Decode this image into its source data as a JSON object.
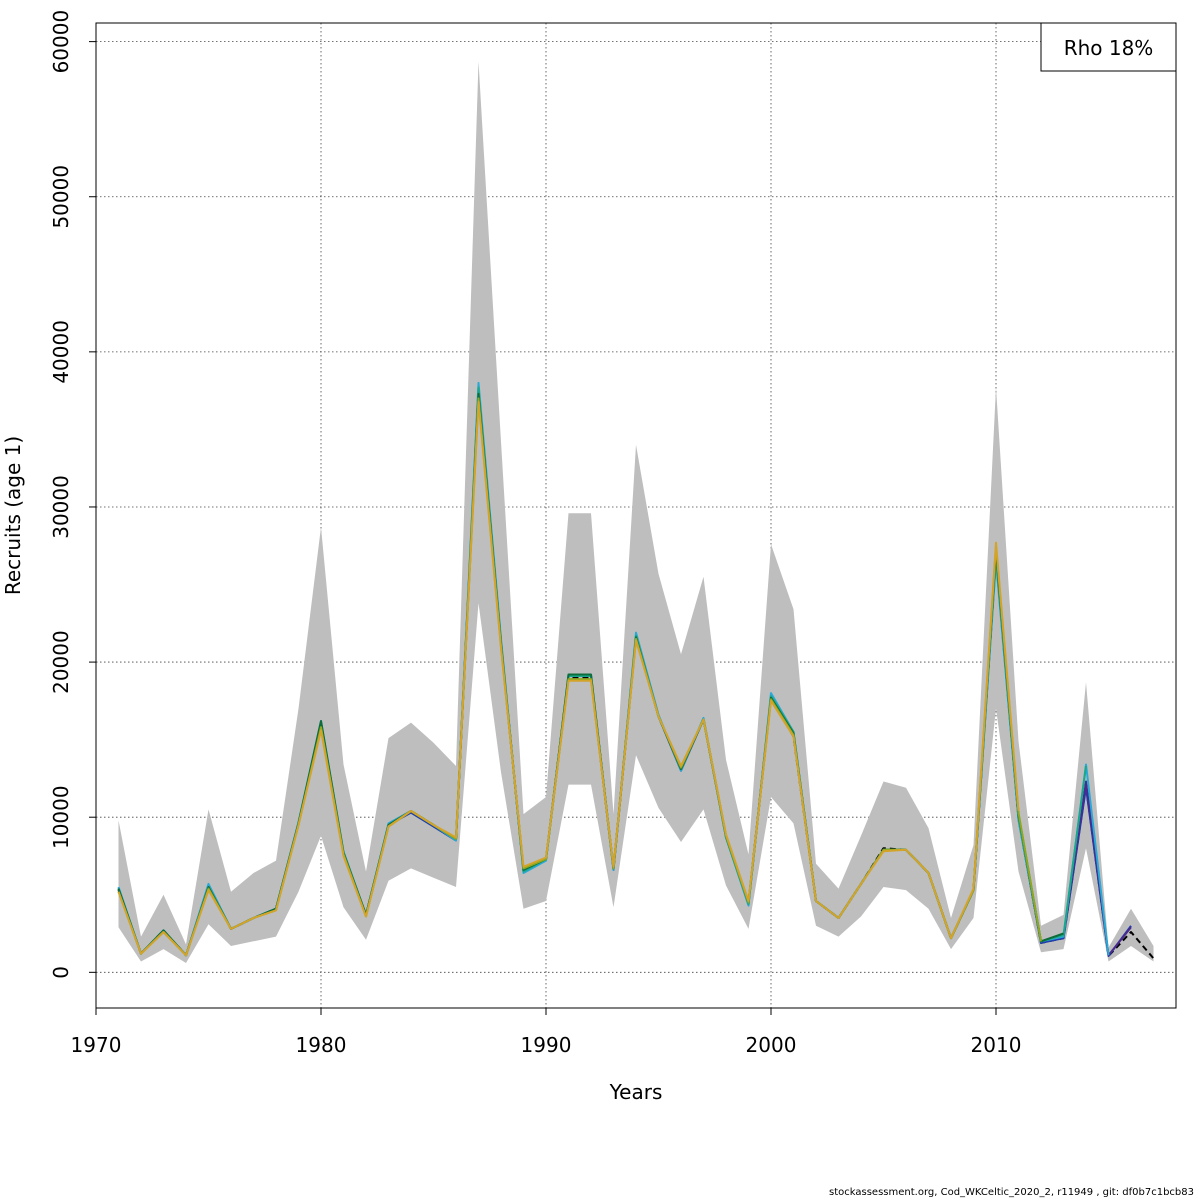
{
  "chart_data": {
    "type": "line",
    "xlabel": "Years",
    "ylabel": "Recruits (age 1)",
    "xlim": [
      1970,
      2018
    ],
    "ylim": [
      -2300,
      61200
    ],
    "x_ticks": [
      1970,
      1980,
      1990,
      2000,
      2010
    ],
    "y_ticks": [
      0,
      10000,
      20000,
      30000,
      40000,
      50000,
      60000
    ],
    "grid": true,
    "legend": {
      "text": "Rho 18%",
      "placement": "top-right"
    },
    "band": {
      "years": [
        1971,
        1972,
        1973,
        1974,
        1975,
        1976,
        1977,
        1978,
        1979,
        1980,
        1981,
        1982,
        1983,
        1984,
        1985,
        1986,
        1987,
        1988,
        1989,
        1990,
        1991,
        1992,
        1993,
        1994,
        1995,
        1996,
        1997,
        1998,
        1999,
        2000,
        2001,
        2002,
        2003,
        2004,
        2005,
        2006,
        2007,
        2008,
        2009,
        2010,
        2011,
        2012,
        2013,
        2014,
        2015,
        2016,
        2017
      ],
      "upper": [
        9800,
        2300,
        5000,
        1800,
        10500,
        5200,
        6400,
        7200,
        17000,
        28700,
        13400,
        6500,
        15100,
        16100,
        14800,
        13300,
        58700,
        34200,
        10200,
        11300,
        29600,
        29600,
        10200,
        34000,
        25700,
        20500,
        25500,
        13700,
        7600,
        27600,
        23400,
        7000,
        5400,
        8800,
        12300,
        11900,
        9300,
        3500,
        8200,
        37700,
        14900,
        3000,
        3700,
        18700,
        1600,
        4100,
        1700
      ],
      "lower": [
        2900,
        700,
        1500,
        600,
        3100,
        1700,
        2000,
        2300,
        5200,
        8800,
        4200,
        2100,
        5900,
        6700,
        6100,
        5500,
        23800,
        12900,
        4100,
        4600,
        12100,
        12100,
        4200,
        14000,
        10600,
        8400,
        10500,
        5600,
        2800,
        11300,
        9600,
        3000,
        2300,
        3600,
        5500,
        5300,
        4100,
        1500,
        3500,
        17000,
        6500,
        1300,
        1500,
        8000,
        700,
        1700,
        700
      ]
    },
    "series": [
      {
        "color": "#000000",
        "dashed": true,
        "x": [
          1971,
          1972,
          1973,
          1974,
          1975,
          1976,
          1977,
          1978,
          1979,
          1980,
          1981,
          1982,
          1983,
          1984,
          1985,
          1986,
          1987,
          1988,
          1989,
          1990,
          1991,
          1992,
          1993,
          1994,
          1995,
          1996,
          1997,
          1998,
          1999,
          2000,
          2001,
          2002,
          2003,
          2004,
          2005,
          2006,
          2007,
          2008,
          2009,
          2010,
          2011,
          2012,
          2013,
          2014,
          2015,
          2016,
          2017
        ],
        "values": [
          5300,
          1200,
          2700,
          1100,
          5500,
          2800,
          3500,
          4100,
          9600,
          16000,
          7700,
          3700,
          9500,
          10400,
          9500,
          8600,
          37400,
          21200,
          6600,
          7300,
          19000,
          19000,
          6700,
          21600,
          16500,
          13100,
          16300,
          8800,
          4500,
          17700,
          15200,
          4600,
          3500,
          5700,
          8000,
          7900,
          6400,
          2200,
          5300,
          26700,
          9900,
          1900,
          2200,
          12000,
          1050,
          2600,
          900
        ]
      },
      {
        "color": "#1f3fae",
        "dashed": false,
        "x": [
          1971,
          1972,
          1973,
          1974,
          1975,
          1976,
          1977,
          1978,
          1979,
          1980,
          1981,
          1982,
          1983,
          1984,
          1985,
          1986,
          1987,
          1988,
          1989,
          1990,
          1991,
          1992,
          1993,
          1994,
          1995,
          1996,
          1997,
          1998,
          1999,
          2000,
          2001,
          2002,
          2003,
          2004,
          2005,
          2006,
          2007,
          2008,
          2009,
          2010,
          2011,
          2012,
          2013,
          2014,
          2015,
          2016
        ],
        "values": [
          5400,
          1200,
          2700,
          1100,
          5600,
          2800,
          3500,
          4100,
          9600,
          16100,
          7700,
          3700,
          9500,
          10300,
          9400,
          8500,
          37600,
          21300,
          6500,
          7300,
          19100,
          19100,
          6600,
          21700,
          16500,
          13000,
          16300,
          8700,
          4400,
          17800,
          15400,
          4600,
          3500,
          5700,
          7900,
          7900,
          6400,
          2200,
          5300,
          26800,
          9900,
          1900,
          2200,
          11900,
          1050,
          3000
        ]
      },
      {
        "color": "#4a2a8c",
        "dashed": false,
        "x": [
          2013,
          2014,
          2015,
          2016
        ],
        "values": [
          2300,
          12300,
          1100,
          2900
        ]
      },
      {
        "color": "#29a9d6",
        "dashed": false,
        "x": [
          1971,
          1972,
          1973,
          1974,
          1975,
          1976,
          1977,
          1978,
          1979,
          1980,
          1981,
          1982,
          1983,
          1984,
          1985,
          1986,
          1987,
          1988,
          1989,
          1990,
          1991,
          1992,
          1993,
          1994,
          1995,
          1996,
          1997,
          1998,
          1999,
          2000,
          2001,
          2002,
          2003,
          2004,
          2005,
          2006,
          2007,
          2008,
          2009,
          2010,
          2011,
          2012,
          2013,
          2014,
          2015
        ],
        "values": [
          5500,
          1200,
          2700,
          1100,
          5700,
          2800,
          3500,
          4100,
          9700,
          16200,
          7800,
          3700,
          9600,
          10400,
          9500,
          8500,
          38000,
          21500,
          6400,
          7200,
          19200,
          19200,
          6600,
          21900,
          16600,
          13000,
          16400,
          8700,
          4300,
          18000,
          15500,
          4600,
          3500,
          5700,
          7900,
          7900,
          6400,
          2200,
          5300,
          26500,
          9800,
          2000,
          2300,
          13400,
          1100
        ]
      },
      {
        "color": "#1aa88c",
        "dashed": false,
        "x": [
          1971,
          1972,
          1973,
          1974,
          1975,
          1976,
          1977,
          1978,
          1979,
          1980,
          1981,
          1982,
          1983,
          1984,
          1985,
          1986,
          1987,
          1988,
          1989,
          1990,
          1991,
          1992,
          1993,
          1994,
          1995,
          1996,
          1997,
          1998,
          1999,
          2000,
          2001,
          2002,
          2003,
          2004,
          2005,
          2006,
          2007,
          2008,
          2009,
          2010,
          2011,
          2012,
          2013,
          2014
        ],
        "values": [
          5400,
          1200,
          2700,
          1100,
          5500,
          2800,
          3500,
          4100,
          9600,
          16100,
          7700,
          3700,
          9500,
          10400,
          9500,
          8600,
          37700,
          21300,
          6500,
          7300,
          19100,
          19100,
          6700,
          21700,
          16500,
          13100,
          16300,
          8700,
          4400,
          17800,
          15500,
          4600,
          3500,
          5700,
          7900,
          7900,
          6400,
          2200,
          5300,
          26900,
          10000,
          2000,
          2400,
          13300
        ]
      },
      {
        "color": "#0e6b3a",
        "dashed": false,
        "x": [
          1971,
          1972,
          1973,
          1974,
          1975,
          1976,
          1977,
          1978,
          1979,
          1980,
          1981,
          1982,
          1983,
          1984,
          1985,
          1986,
          1987,
          1988,
          1989,
          1990,
          1991,
          1992,
          1993,
          1994,
          1995,
          1996,
          1997,
          1998,
          1999,
          2000,
          2001,
          2002,
          2003,
          2004,
          2005,
          2006,
          2007,
          2008,
          2009,
          2010,
          2011,
          2012,
          2013
        ],
        "values": [
          5400,
          1200,
          2700,
          1100,
          5500,
          2800,
          3500,
          4100,
          9600,
          16200,
          7700,
          3700,
          9500,
          10400,
          9500,
          8600,
          37300,
          21200,
          6600,
          7300,
          19200,
          19200,
          6700,
          21600,
          16500,
          13100,
          16300,
          8800,
          4500,
          17700,
          15400,
          4600,
          3500,
          5700,
          7900,
          7900,
          6400,
          2200,
          5300,
          27200,
          10200,
          2000,
          2500
        ]
      },
      {
        "color": "#8fa81f",
        "dashed": false,
        "x": [
          1971,
          1972,
          1973,
          1974,
          1975,
          1976,
          1977,
          1978,
          1979,
          1980,
          1981,
          1982,
          1983,
          1984,
          1985,
          1986,
          1987,
          1988,
          1989,
          1990,
          1991,
          1992,
          1993,
          1994,
          1995,
          1996,
          1997,
          1998,
          1999,
          2000,
          2001,
          2002,
          2003,
          2004,
          2005,
          2006,
          2007,
          2008,
          2009,
          2010,
          2011,
          2012
        ],
        "values": [
          5200,
          1200,
          2600,
          1100,
          5400,
          2800,
          3500,
          4000,
          9500,
          15800,
          7600,
          3600,
          9400,
          10400,
          9500,
          8600,
          37000,
          21000,
          6700,
          7300,
          18900,
          18900,
          6700,
          21500,
          16500,
          13200,
          16300,
          8800,
          4500,
          17600,
          15300,
          4600,
          3500,
          5700,
          7900,
          7900,
          6400,
          2200,
          5300,
          27500,
          10300,
          2000
        ]
      },
      {
        "color": "#d4a42a",
        "dashed": false,
        "x": [
          1971,
          1972,
          1973,
          1974,
          1975,
          1976,
          1977,
          1978,
          1979,
          1980,
          1981,
          1982,
          1983,
          1984,
          1985,
          1986,
          1987,
          1988,
          1989,
          1990,
          1991,
          1992,
          1993,
          1994,
          1995,
          1996,
          1997,
          1998,
          1999,
          2000,
          2001,
          2002,
          2003,
          2004,
          2005,
          2006,
          2007,
          2008,
          2009,
          2010,
          2011
        ],
        "values": [
          5200,
          1200,
          2600,
          1100,
          5300,
          2800,
          3500,
          4000,
          9500,
          15600,
          7500,
          3600,
          9400,
          10400,
          9500,
          8700,
          36800,
          20900,
          6800,
          7400,
          18800,
          18800,
          6800,
          21400,
          16500,
          13300,
          16300,
          8900,
          4600,
          17500,
          15200,
          4600,
          3500,
          5700,
          7800,
          7900,
          6400,
          2200,
          5400,
          27700,
          10400
        ]
      }
    ]
  },
  "footer": "stockassessment.org, Cod_WKCeltic_2020_2, r11949 , git: df0b7c1bcb83"
}
